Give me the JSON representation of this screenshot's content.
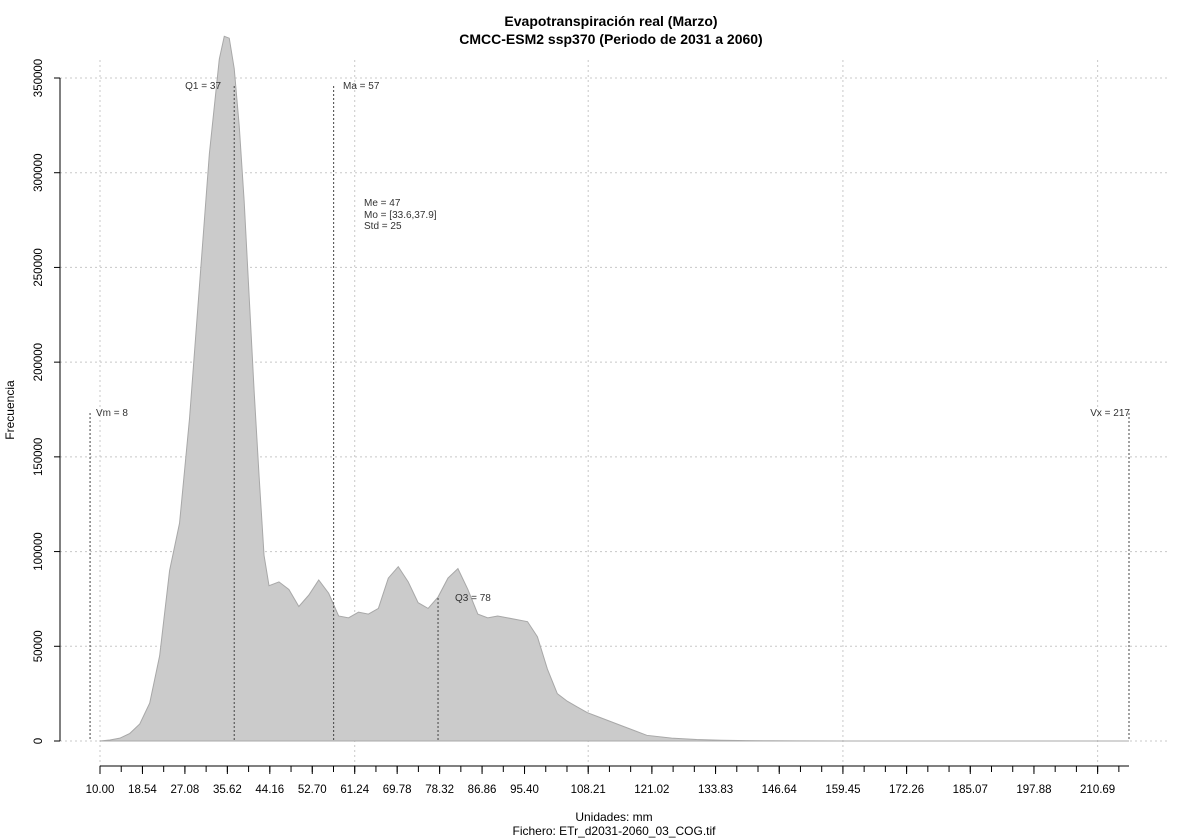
{
  "chart_data": {
    "type": "area",
    "title": "Evapotranspiración real (Marzo)",
    "subtitle": "CMCC-ESM2 ssp370 (Periodo de 2031 a 2060)",
    "xlabel": "Unidades: mm",
    "ylabel": "Frecuencia",
    "footer": "Fichero: ETr_d2031-2060_03_COG.tif",
    "xlim": [
      10,
      217
    ],
    "ylim": [
      0,
      350000
    ],
    "grid": true,
    "x_ticks": [
      "10.00",
      "18.54",
      "27.08",
      "35.62",
      "44.16",
      "52.70",
      "61.24",
      "69.78",
      "78.32",
      "86.86",
      "95.40",
      "108.21",
      "121.02",
      "133.83",
      "146.64",
      "159.45",
      "172.26",
      "185.07",
      "197.88",
      "210.69"
    ],
    "y_ticks": [
      0,
      50000,
      100000,
      150000,
      200000,
      250000,
      300000,
      350000
    ],
    "x": [
      10,
      12,
      14,
      16,
      18,
      20,
      22,
      24,
      26,
      28,
      30,
      32,
      34,
      35,
      36,
      37,
      38,
      39,
      40,
      41,
      42,
      43,
      44,
      46,
      48,
      50,
      52,
      54,
      56,
      58,
      60,
      62,
      64,
      66,
      68,
      70,
      72,
      74,
      76,
      78,
      80,
      82,
      84,
      86,
      88,
      90,
      92,
      94,
      96,
      98,
      100,
      102,
      104,
      106,
      108,
      110,
      115,
      120,
      125,
      130,
      135,
      140,
      145,
      150,
      160,
      170,
      180,
      190,
      200,
      210,
      217
    ],
    "y": [
      0,
      500,
      1500,
      4000,
      9000,
      20000,
      45000,
      90000,
      115000,
      170000,
      240000,
      310000,
      360000,
      372000,
      371000,
      355000,
      325000,
      285000,
      235000,
      185000,
      140000,
      98000,
      82000,
      84000,
      80000,
      71000,
      77000,
      85000,
      78000,
      66000,
      65000,
      68000,
      67000,
      70000,
      86000,
      92000,
      84000,
      73000,
      70000,
      76000,
      86000,
      91000,
      80000,
      67000,
      65000,
      66000,
      65000,
      64000,
      63000,
      55000,
      38000,
      25000,
      21000,
      18000,
      15000,
      13000,
      8000,
      3000,
      1500,
      800,
      400,
      200,
      100,
      50,
      20,
      10,
      5,
      3,
      2,
      1,
      0
    ],
    "annotations": {
      "q1": {
        "label": "Q1 = 37",
        "x": 37
      },
      "ma": {
        "label": "Ma = 57",
        "x": 57
      },
      "q3": {
        "label": "Q3 = 78",
        "x": 78
      },
      "vm": {
        "label": "Vm = 8",
        "x": 8
      },
      "vx": {
        "label": "Vx = 217",
        "x": 217
      },
      "stats": [
        "Me = 47",
        "Mo = [33.6,37.9]",
        "Std = 25"
      ]
    },
    "colors": {
      "fill": "#cbcbcb",
      "stroke": "#a8a8a8"
    }
  }
}
